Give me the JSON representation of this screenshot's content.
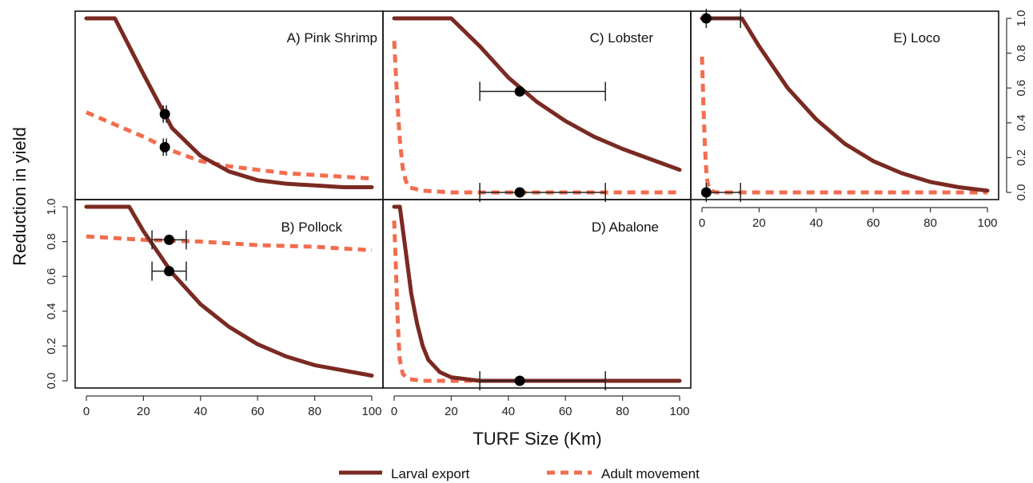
{
  "chart_data": {
    "type": "line",
    "xlabel": "TURF Size (Km)",
    "ylabel": "Reduction in yield",
    "xlim": [
      0,
      100
    ],
    "ylim": [
      0,
      1
    ],
    "x_ticks": [
      0,
      20,
      40,
      60,
      80,
      100
    ],
    "y_ticks": [
      0.0,
      0.2,
      0.4,
      0.6,
      0.8,
      1.0
    ],
    "x_tick_labels": [
      "0",
      "20",
      "40",
      "60",
      "80",
      "100"
    ],
    "y_tick_labels": [
      "0.0",
      "0.2",
      "0.4",
      "0.6",
      "0.8",
      "1.0"
    ],
    "legend": {
      "position": "bottom-center",
      "entries": [
        {
          "label": "Larval export",
          "color": "#7a2a22",
          "style": "solid"
        },
        {
          "label": "Adult movement",
          "color": "#f26d4f",
          "style": "dashed"
        }
      ]
    },
    "panels": [
      {
        "id": "A",
        "label": "A) Pink Shrimp",
        "larval_export": {
          "x": [
            0,
            10,
            20,
            30,
            40,
            50,
            60,
            70,
            80,
            90,
            100
          ],
          "y": [
            1.0,
            1.0,
            0.68,
            0.37,
            0.21,
            0.12,
            0.07,
            0.05,
            0.04,
            0.03,
            0.03
          ]
        },
        "adult_movement": {
          "x": [
            0,
            10,
            20,
            30,
            40,
            50,
            60,
            70,
            80,
            90,
            100
          ],
          "y": [
            0.46,
            0.39,
            0.32,
            0.24,
            0.18,
            0.15,
            0.13,
            0.11,
            0.1,
            0.09,
            0.08
          ]
        },
        "points": [
          {
            "x": 27.5,
            "y": 0.45,
            "xerr": [
              27.5,
              27.5
            ],
            "yerr": [
              0.4,
              0.5
            ]
          },
          {
            "x": 27.5,
            "y": 0.26,
            "xerr": [
              27.5,
              27.5
            ],
            "yerr": [
              0.21,
              0.31
            ]
          }
        ]
      },
      {
        "id": "B",
        "label": "B) Pollock",
        "larval_export": {
          "x": [
            0,
            15,
            20,
            30,
            40,
            50,
            60,
            70,
            80,
            90,
            100
          ],
          "y": [
            1.0,
            1.0,
            0.86,
            0.62,
            0.44,
            0.31,
            0.21,
            0.14,
            0.09,
            0.06,
            0.03
          ]
        },
        "adult_movement": {
          "x": [
            0,
            20,
            40,
            60,
            80,
            100
          ],
          "y": [
            0.83,
            0.81,
            0.8,
            0.78,
            0.77,
            0.75
          ]
        },
        "points": [
          {
            "x": 29,
            "y": 0.81,
            "xerr": [
              23,
              35
            ],
            "yerr": [
              0.81,
              0.81
            ]
          },
          {
            "x": 29,
            "y": 0.63,
            "xerr": [
              23,
              35
            ],
            "yerr": [
              0.63,
              0.63
            ]
          }
        ]
      },
      {
        "id": "C",
        "label": "C) Lobster",
        "larval_export": {
          "x": [
            0,
            20,
            30,
            40,
            50,
            60,
            70,
            80,
            90,
            100
          ],
          "y": [
            1.0,
            1.0,
            0.84,
            0.66,
            0.52,
            0.41,
            0.32,
            0.25,
            0.19,
            0.13
          ]
        },
        "adult_movement": {
          "x": [
            0,
            1,
            2,
            3,
            4,
            5,
            10,
            20,
            100
          ],
          "y": [
            0.87,
            0.55,
            0.3,
            0.14,
            0.07,
            0.03,
            0.01,
            0.0,
            0.0
          ]
        },
        "points": [
          {
            "x": 44,
            "y": 0.58,
            "xerr": [
              30,
              74
            ],
            "yerr": [
              0.58,
              0.58
            ]
          },
          {
            "x": 44,
            "y": 0.0,
            "xerr": [
              30,
              74
            ],
            "yerr": [
              0.0,
              0.0
            ]
          }
        ]
      },
      {
        "id": "D",
        "label": "D) Abalone",
        "larval_export": {
          "x": [
            0,
            2,
            4,
            6,
            8,
            10,
            12,
            16,
            20,
            30,
            100
          ],
          "y": [
            1.0,
            1.0,
            0.75,
            0.5,
            0.33,
            0.2,
            0.12,
            0.05,
            0.02,
            0.0,
            0.0
          ]
        },
        "adult_movement": {
          "x": [
            0,
            0.5,
            1,
            1.5,
            2,
            3,
            5,
            10,
            100
          ],
          "y": [
            0.92,
            0.7,
            0.45,
            0.25,
            0.12,
            0.04,
            0.01,
            0.0,
            0.0
          ]
        },
        "points": [
          {
            "x": 44,
            "y": 0.0,
            "xerr": [
              30,
              74
            ],
            "yerr": [
              0.0,
              0.0
            ]
          }
        ]
      },
      {
        "id": "E",
        "label": "E) Loco",
        "larval_export": {
          "x": [
            0,
            14,
            20,
            30,
            40,
            50,
            60,
            70,
            80,
            90,
            100
          ],
          "y": [
            1.0,
            1.0,
            0.84,
            0.6,
            0.42,
            0.28,
            0.18,
            0.11,
            0.06,
            0.03,
            0.01
          ]
        },
        "adult_movement": {
          "x": [
            0,
            0.5,
            1,
            1.5,
            2,
            3,
            5,
            100
          ],
          "y": [
            0.78,
            0.5,
            0.27,
            0.12,
            0.05,
            0.01,
            0.0,
            0.0
          ]
        },
        "points": [
          {
            "x": 1.5,
            "y": 1.0,
            "xerr": [
              1.5,
              13.5
            ],
            "yerr": [
              1.0,
              1.0
            ]
          },
          {
            "x": 1.5,
            "y": 0.0,
            "xerr": [
              1.5,
              13.5
            ],
            "yerr": [
              0.0,
              0.0
            ]
          }
        ]
      }
    ]
  }
}
